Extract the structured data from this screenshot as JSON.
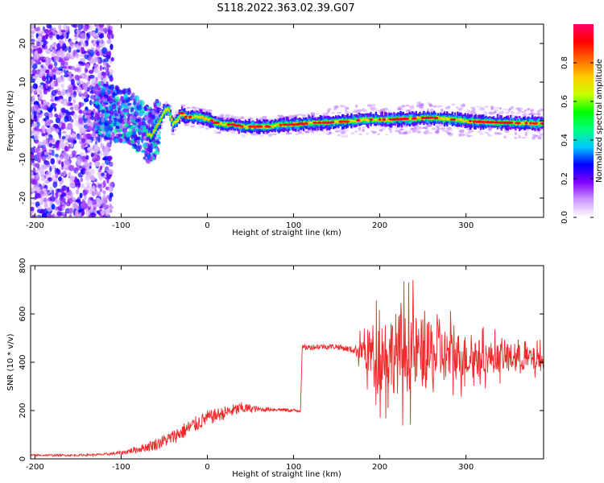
{
  "title": "S118.2022.363.02.39.G07",
  "chart_data": [
    {
      "type": "heatmap",
      "xlabel": "Height of straight line (km)",
      "ylabel": "Frequency (Hz)",
      "xlim": [
        -205,
        390
      ],
      "ylim": [
        -25,
        25
      ],
      "xticks": [
        -200,
        -100,
        0,
        100,
        200,
        300
      ],
      "yticks": [
        -20,
        -10,
        0,
        10,
        20
      ],
      "grid": false,
      "colorbar": {
        "label": "Normalized spectral amplitude",
        "range": [
          0.0,
          1.0
        ],
        "ticks": [
          "0.0",
          "0.2",
          "0.4",
          "0.6",
          "0.8"
        ],
        "tick_values": [
          0.0,
          0.2,
          0.4,
          0.6,
          0.8
        ],
        "colormap": [
          "#ffffff",
          "#cc99ff",
          "#8000ff",
          "#0000ff",
          "#00c8ff",
          "#00ff80",
          "#00ff00",
          "#c8ff00",
          "#ffcc00",
          "#ff6600",
          "#ff0000",
          "#ff0066"
        ]
      },
      "ridge": {
        "x": [
          -125,
          -110,
          -100,
          -90,
          -80,
          -72,
          -65,
          -60,
          -55,
          -50,
          -45,
          -40,
          -35,
          -30,
          -25,
          -20,
          -10,
          0,
          10,
          20,
          30,
          40,
          50,
          60,
          70,
          80,
          90,
          100,
          110,
          120,
          130,
          140,
          150,
          160,
          170,
          180,
          190,
          200,
          210,
          220,
          230,
          240,
          250,
          260,
          270,
          280,
          290,
          300,
          310,
          320,
          330,
          340,
          350,
          360,
          370,
          380,
          390
        ],
        "y": [
          3,
          2,
          1.5,
          1,
          -1,
          -3,
          -4,
          -2,
          0,
          2.5,
          3,
          -1,
          0,
          2,
          1,
          1,
          1,
          0.5,
          -0.5,
          -1,
          -1,
          -1.5,
          -1.5,
          -1.5,
          -1.5,
          -1.2,
          -1,
          -1,
          -0.8,
          -0.6,
          -0.5,
          -0.5,
          -0.3,
          -0.2,
          0,
          0.2,
          0.3,
          0.3,
          0.3,
          0.4,
          0.5,
          0.6,
          0.7,
          0.8,
          0.6,
          0.4,
          0.2,
          0.0,
          -0.2,
          -0.3,
          -0.4,
          -0.5,
          -0.5,
          -0.6,
          -0.6,
          -0.7,
          -0.7
        ]
      }
    },
    {
      "type": "line",
      "xlabel": "Height of straight line (km)",
      "ylabel": "SNR (10 * v/v)",
      "xlim": [
        -205,
        390
      ],
      "ylim": [
        0,
        800
      ],
      "xticks": [
        -200,
        -100,
        0,
        100,
        200,
        300
      ],
      "yticks": [
        0,
        200,
        400,
        600,
        800
      ],
      "grid": false,
      "series": [
        {
          "color": "#ee2a2a",
          "x": [
            -205,
            -150,
            -120,
            -100,
            -80,
            -60,
            -40,
            -20,
            0,
            20,
            40,
            60,
            80,
            100,
            108,
            110,
            130,
            150,
            170,
            180,
            190,
            200,
            220,
            240,
            260,
            280,
            300,
            320,
            340,
            360,
            380,
            390
          ],
          "y": [
            15,
            15,
            18,
            25,
            40,
            60,
            90,
            130,
            170,
            190,
            210,
            205,
            205,
            200,
            200,
            460,
            465,
            465,
            450,
            450,
            440,
            440,
            440,
            440,
            430,
            430,
            425,
            420,
            420,
            420,
            410,
            410
          ],
          "amplitude": [
            4,
            4,
            5,
            8,
            15,
            25,
            30,
            35,
            30,
            28,
            25,
            10,
            8,
            8,
            8,
            12,
            12,
            12,
            14,
            60,
            120,
            150,
            170,
            160,
            130,
            110,
            90,
            70,
            60,
            55,
            50,
            45
          ]
        }
      ]
    }
  ]
}
